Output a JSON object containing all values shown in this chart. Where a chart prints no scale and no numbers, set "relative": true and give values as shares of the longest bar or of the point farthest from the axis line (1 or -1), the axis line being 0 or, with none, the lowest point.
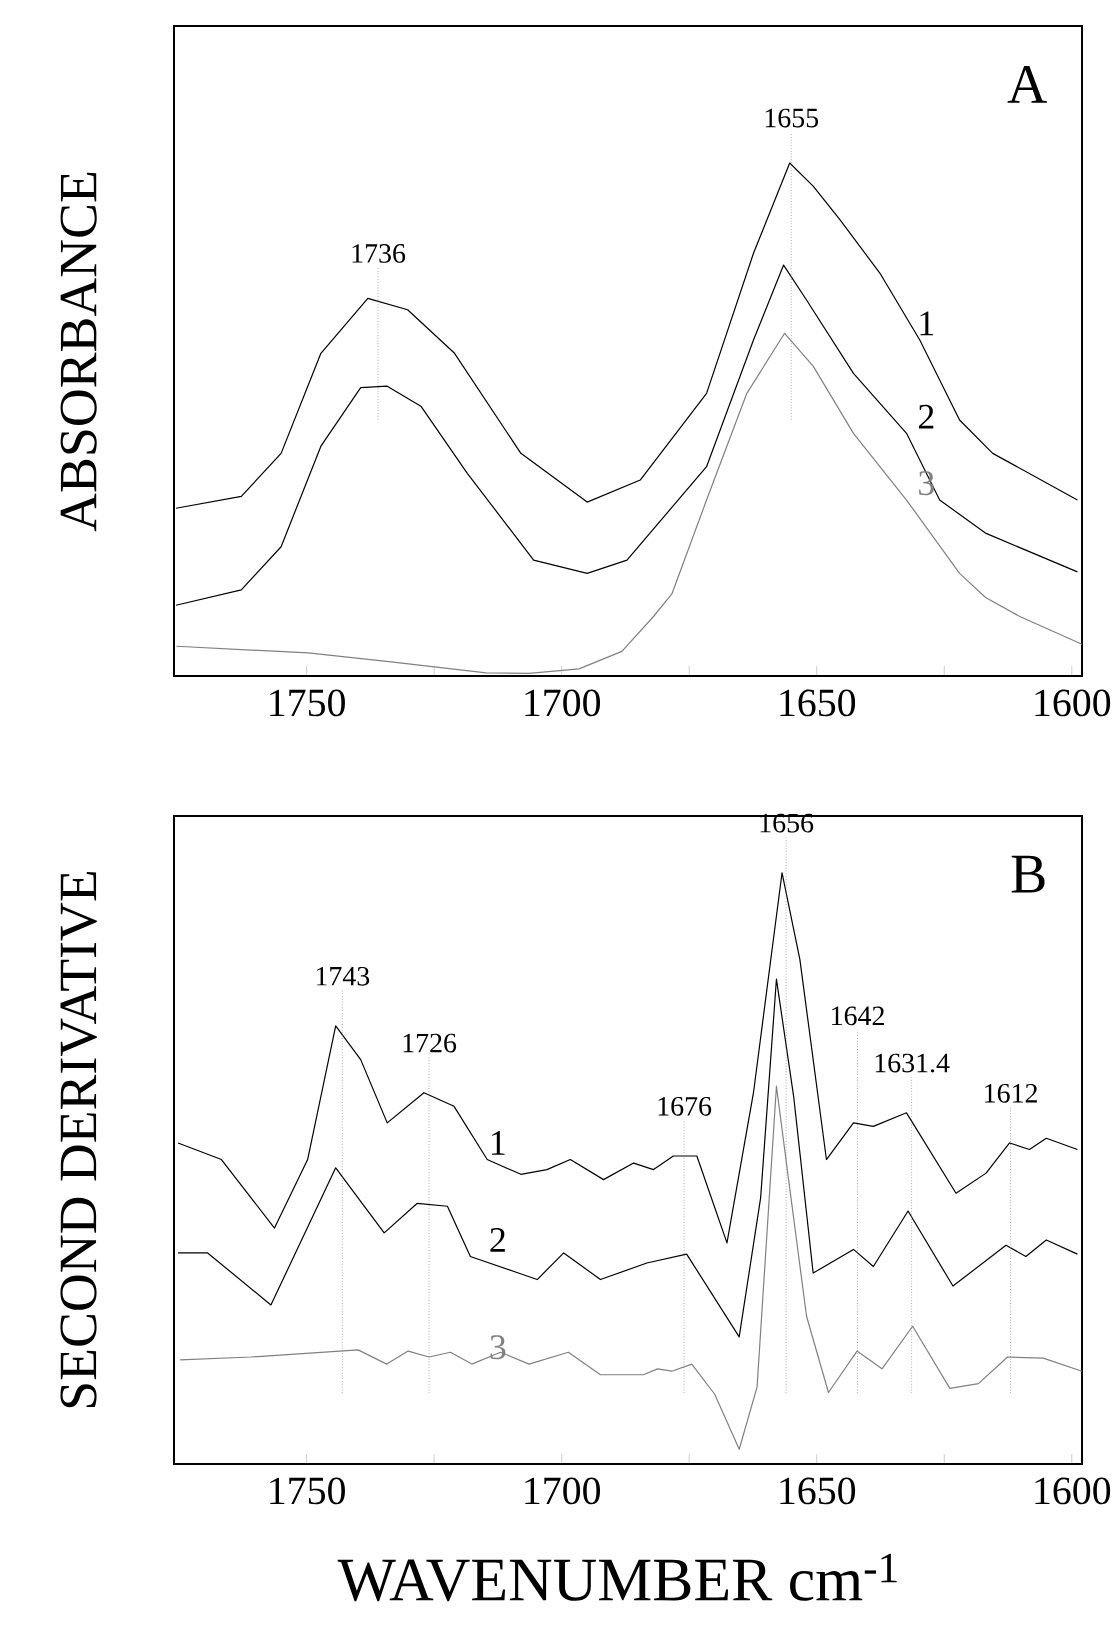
{
  "chart_data": [
    {
      "type": "line",
      "relative": true,
      "ylabel": "ABSORBANCE",
      "xlim": [
        1776,
        1598
      ],
      "xticks": [
        1750,
        {
          "value": 1725,
          "label": null
        },
        1700,
        {
          "value": 1675,
          "label": null
        },
        1650,
        {
          "value": 1625,
          "label": null
        },
        1600
      ],
      "series": [
        {
          "name": "1",
          "color": "#000000",
          "x": [
            1775.6,
            1762.8,
            1755,
            1747.2,
            1738,
            1730.2,
            1721,
            1708,
            1695,
            1684.6,
            1671.6,
            1662.4,
            1655.3,
            1650.7,
            1645.5,
            1637.6,
            1629.8,
            1622,
            1615.5,
            1598.9
          ],
          "values": [
            0.327,
            0.35,
            0.434,
            0.629,
            0.736,
            0.714,
            0.629,
            0.434,
            0.339,
            0.382,
            0.551,
            0.824,
            1.0,
            0.955,
            0.89,
            0.785,
            0.655,
            0.499,
            0.434,
            0.343
          ]
        },
        {
          "name": "2",
          "color": "#000000",
          "x": [
            1775.6,
            1762.8,
            1755,
            1747.2,
            1739.4,
            1734.2,
            1727.6,
            1718.5,
            1705.5,
            1695,
            1687.2,
            1671.6,
            1662.4,
            1656.5,
            1652,
            1642.8,
            1632.4,
            1625.9,
            1616.8,
            1598.9
          ],
          "values": [
            0.138,
            0.168,
            0.252,
            0.448,
            0.562,
            0.565,
            0.526,
            0.395,
            0.226,
            0.2,
            0.226,
            0.408,
            0.655,
            0.801,
            0.733,
            0.59,
            0.473,
            0.343,
            0.278,
            0.203
          ]
        },
        {
          "name": "3",
          "color": "#808080",
          "x": [
            1775.5,
            1749.7,
            1733,
            1714.8,
            1706.4,
            1696.6,
            1688.2,
            1682,
            1678.4,
            1671.6,
            1663.7,
            1656.3,
            1650.7,
            1642.8,
            1632.4,
            1622,
            1616.9,
            1610.2,
            1598
          ],
          "values": [
            0.058,
            0.045,
            0.027,
            0.006,
            0.005,
            0.014,
            0.048,
            0.116,
            0.16,
            0.343,
            0.551,
            0.668,
            0.604,
            0.473,
            0.343,
            0.2,
            0.153,
            0.116,
            0.062
          ]
        }
      ],
      "ref_lines": [
        {
          "axis": "x",
          "value": 1736,
          "label": "1736",
          "color": "#808080",
          "line_style": "dotted"
        },
        {
          "axis": "x",
          "value": 1655,
          "label": "1655",
          "color": "#808080",
          "line_style": "dotted"
        }
      ],
      "annotations": [
        "A"
      ]
    },
    {
      "type": "line",
      "relative": true,
      "ylabel": "SECOND DERIVATIVE",
      "xlabel": "WAVENUMBER cm$^{-1}$",
      "xlim": [
        1776,
        1598
      ],
      "xticks": [
        1750,
        {
          "value": 1725,
          "label": null
        },
        1700,
        {
          "value": 1675,
          "label": null
        },
        1650,
        {
          "value": 1625,
          "label": null
        },
        1600
      ],
      "series": [
        {
          "name": "1",
          "color": "#000000",
          "x": [
            1775.2,
            1766.7,
            1756.3,
            1749.8,
            1744.3,
            1739.4,
            1734.2,
            1727,
            1721.1,
            1714.6,
            1708,
            1702.9,
            1698.3,
            1691.8,
            1685.9,
            1682,
            1678.1,
            1673.5,
            1667.6,
            1662.4,
            1656.8,
            1653.3,
            1648.1,
            1642.8,
            1638.9,
            1632.4,
            1622.7,
            1616.8,
            1612.2,
            1608.3,
            1605,
            1598.9
          ],
          "values": [
            0.543,
            0.515,
            0.399,
            0.515,
            0.741,
            0.684,
            0.577,
            0.628,
            0.605,
            0.515,
            0.49,
            0.498,
            0.515,
            0.481,
            0.509,
            0.498,
            0.521,
            0.521,
            0.374,
            0.628,
            1.0,
            0.853,
            0.515,
            0.577,
            0.571,
            0.594,
            0.458,
            0.492,
            0.543,
            0.532,
            0.551,
            0.532
          ]
        },
        {
          "name": "2",
          "color": "#000000",
          "x": [
            1775.2,
            1769.4,
            1757,
            1744.3,
            1734.8,
            1728.3,
            1722.4,
            1717.9,
            1704.8,
            1699.6,
            1692.4,
            1683.3,
            1675.5,
            1665.2,
            1661,
            1657.9,
            1654.5,
            1650.7,
            1642.8,
            1638.9,
            1632.1,
            1623.3,
            1612.9,
            1609,
            1605,
            1598.9
          ],
          "values": [
            0.357,
            0.357,
            0.269,
            0.501,
            0.391,
            0.441,
            0.436,
            0.351,
            0.312,
            0.357,
            0.312,
            0.34,
            0.355,
            0.215,
            0.45,
            0.82,
            0.62,
            0.323,
            0.363,
            0.334,
            0.428,
            0.301,
            0.37,
            0.351,
            0.379,
            0.355
          ]
        },
        {
          "name": "3",
          "color": "#808080",
          "x": [
            1774.8,
            1760.9,
            1739.9,
            1734.3,
            1730.1,
            1726,
            1721.8,
            1717.6,
            1712,
            1706.4,
            1698.7,
            1692.4,
            1684,
            1681.2,
            1678.4,
            1674.5,
            1670,
            1665.2,
            1661.7,
            1657.9,
            1655.5,
            1652,
            1647.7,
            1642.1,
            1637.2,
            1631.2,
            1623.9,
            1618.3,
            1612.6,
            1605.6,
            1598
          ],
          "values": [
            0.176,
            0.181,
            0.193,
            0.169,
            0.191,
            0.181,
            0.189,
            0.169,
            0.189,
            0.169,
            0.189,
            0.151,
            0.151,
            0.161,
            0.157,
            0.169,
            0.118,
            0.025,
            0.13,
            0.639,
            0.48,
            0.25,
            0.121,
            0.191,
            0.161,
            0.233,
            0.128,
            0.136,
            0.181,
            0.179,
            0.157
          ]
        }
      ],
      "ref_lines": [
        {
          "axis": "x",
          "value": 1743,
          "label": "1743",
          "color": "#808080",
          "line_style": "dotted"
        },
        {
          "axis": "x",
          "value": 1726,
          "label": "1726",
          "color": "#808080",
          "line_style": "dotted"
        },
        {
          "axis": "x",
          "value": 1676,
          "label": "1676",
          "color": "#808080",
          "line_style": "dotted"
        },
        {
          "axis": "x",
          "value": 1656,
          "label": "1656",
          "color": "#808080",
          "line_style": "dotted"
        },
        {
          "axis": "x",
          "value": 1642,
          "label": "1642",
          "color": "#808080",
          "line_style": "dotted"
        },
        {
          "axis": "x",
          "value": 1631.4,
          "label": "1631.4",
          "color": "#808080",
          "line_style": "dotted"
        },
        {
          "axis": "x",
          "value": 1612,
          "label": "1612",
          "color": "#808080",
          "line_style": "dotted"
        }
      ],
      "annotations": [
        "B"
      ]
    }
  ]
}
